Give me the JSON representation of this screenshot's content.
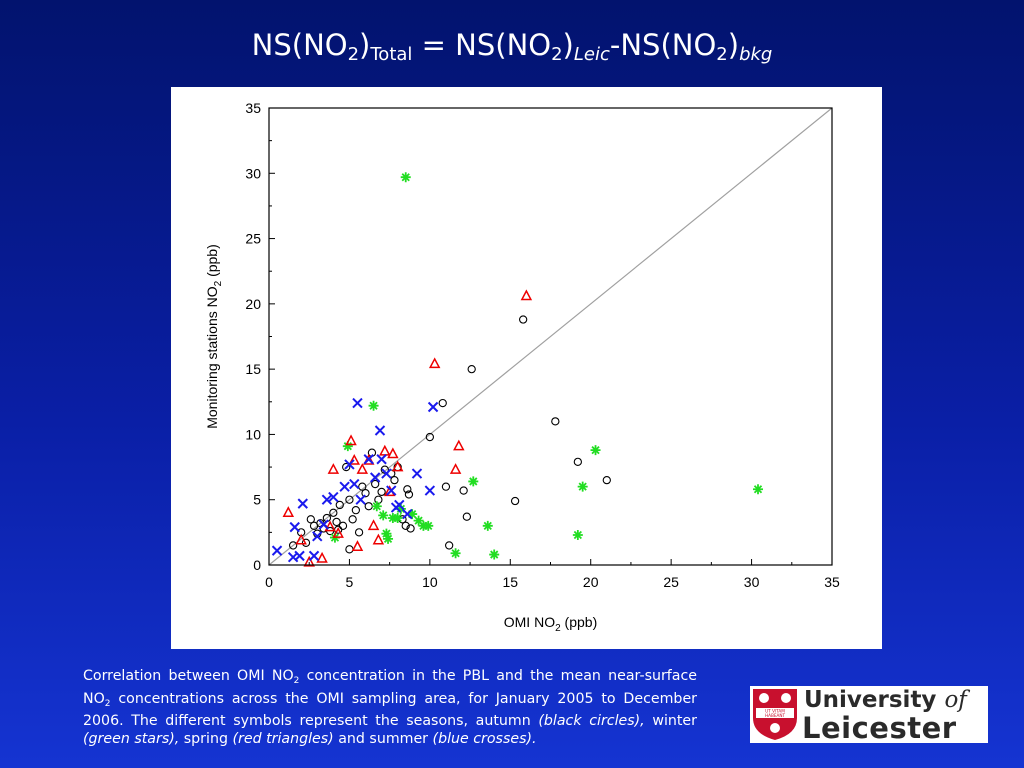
{
  "title": {
    "p1": "NS(NO",
    "s1": "2",
    "p2": ")",
    "s2": "Total",
    "p3": " = NS(NO",
    "s3": "2",
    "p4": ")",
    "s4": "Leic",
    "p5": "-NS(NO",
    "s5": "2",
    "p6": ")",
    "s6": "bkg"
  },
  "caption": {
    "t1": "Correlation between OMI NO",
    "s1": "2",
    "t2": " concentration in the PBL and the mean near-surface NO",
    "s2": "2",
    "t3": " concentrations across the OMI sampling area, for January 2005 to December 2006. The different symbols represent the seasons, autumn ",
    "i1": "(black circles),",
    "t4": " winter ",
    "i2": "(green stars),",
    "t5": " spring ",
    "i3": "(red triangles)",
    "t6": " and summer ",
    "i4": "(blue crosses)."
  },
  "logo": {
    "line1": "University ",
    "of": "of",
    "line2": "Leicester",
    "motto1": "UT VITAM",
    "motto2": "HABEANT"
  },
  "chart_data": {
    "type": "scatter",
    "xlabel": "OMI NO",
    "xlabel_sub": "2",
    "xlabel_unit": " (ppb)",
    "ylabel": "Monitoring stations NO",
    "ylabel_sub": "2",
    "ylabel_unit": " (ppb)",
    "xlim": [
      0,
      35
    ],
    "ylim": [
      0,
      35
    ],
    "xticks": [
      0,
      5,
      10,
      15,
      20,
      25,
      30,
      35
    ],
    "yticks": [
      0,
      5,
      10,
      15,
      20,
      25,
      30,
      35
    ],
    "grid": false,
    "reference_line": {
      "type": "1:1",
      "color": "#a0a0a0"
    },
    "series": [
      {
        "season": "autumn",
        "marker": "circle",
        "color": "#000000",
        "points": [
          [
            1.5,
            1.5
          ],
          [
            2,
            2.5
          ],
          [
            2.3,
            1.7
          ],
          [
            2.6,
            3.5
          ],
          [
            2.8,
            3
          ],
          [
            3,
            2.4
          ],
          [
            3.2,
            3.2
          ],
          [
            3.4,
            2.8
          ],
          [
            3.6,
            3.6
          ],
          [
            3.8,
            2.6
          ],
          [
            4,
            4
          ],
          [
            4.2,
            3.3
          ],
          [
            4.4,
            4.6
          ],
          [
            4.6,
            3
          ],
          [
            4.8,
            7.5
          ],
          [
            5,
            5
          ],
          [
            5.2,
            3.5
          ],
          [
            5.4,
            4.2
          ],
          [
            5.6,
            2.5
          ],
          [
            5.8,
            6
          ],
          [
            6,
            5.5
          ],
          [
            6.2,
            4.5
          ],
          [
            6.4,
            8.6
          ],
          [
            6.6,
            6.2
          ],
          [
            6.8,
            5
          ],
          [
            7,
            5.6
          ],
          [
            7.2,
            7.3
          ],
          [
            7.6,
            7
          ],
          [
            7.8,
            6.5
          ],
          [
            8,
            7.5
          ],
          [
            8.3,
            3.5
          ],
          [
            8.5,
            3
          ],
          [
            8.6,
            5.8
          ],
          [
            8.7,
            5.4
          ],
          [
            8.8,
            2.8
          ],
          [
            10,
            9.8
          ],
          [
            10.8,
            12.4
          ],
          [
            11,
            6
          ],
          [
            11.2,
            1.5
          ],
          [
            12.1,
            5.7
          ],
          [
            12.3,
            3.7
          ],
          [
            12.6,
            15
          ],
          [
            15.3,
            4.9
          ],
          [
            15.8,
            18.8
          ],
          [
            17.8,
            11
          ],
          [
            19.2,
            7.9
          ],
          [
            21,
            6.5
          ],
          [
            5.0,
            1.2
          ],
          [
            4.3,
            2.7
          ]
        ]
      },
      {
        "season": "winter",
        "marker": "star",
        "color": "#22dd22",
        "points": [
          [
            4.1,
            2.1
          ],
          [
            4.9,
            9.1
          ],
          [
            6.5,
            12.2
          ],
          [
            6.7,
            4.5
          ],
          [
            7.1,
            3.8
          ],
          [
            7.3,
            2.4
          ],
          [
            7.4,
            2.0
          ],
          [
            7.7,
            3.6
          ],
          [
            8.0,
            3.6
          ],
          [
            8.2,
            4.3
          ],
          [
            8.5,
            29.7
          ],
          [
            8.9,
            3.9
          ],
          [
            9.3,
            3.4
          ],
          [
            9.6,
            3.0
          ],
          [
            9.9,
            3.0
          ],
          [
            11.6,
            0.9
          ],
          [
            12.7,
            6.4
          ],
          [
            13.6,
            3.0
          ],
          [
            14.0,
            0.8
          ],
          [
            19.2,
            2.3
          ],
          [
            19.5,
            6.0
          ],
          [
            20.3,
            8.8
          ],
          [
            30.4,
            5.8
          ]
        ]
      },
      {
        "season": "spring",
        "marker": "triangle",
        "color": "#ee0000",
        "points": [
          [
            1.2,
            4.0
          ],
          [
            2.0,
            1.9
          ],
          [
            2.5,
            0.2
          ],
          [
            3.3,
            0.5
          ],
          [
            3.8,
            2.9
          ],
          [
            4.0,
            7.3
          ],
          [
            4.3,
            2.4
          ],
          [
            5.1,
            9.5
          ],
          [
            5.3,
            8.0
          ],
          [
            5.5,
            1.4
          ],
          [
            5.8,
            7.3
          ],
          [
            6.2,
            8.0
          ],
          [
            6.5,
            3.0
          ],
          [
            6.8,
            1.9
          ],
          [
            7.2,
            8.7
          ],
          [
            7.5,
            5.6
          ],
          [
            7.7,
            8.5
          ],
          [
            8.0,
            7.5
          ],
          [
            10.3,
            15.4
          ],
          [
            11.6,
            7.3
          ],
          [
            11.8,
            9.1
          ],
          [
            16.0,
            20.6
          ]
        ]
      },
      {
        "season": "summer",
        "marker": "cross",
        "color": "#1a1aee",
        "points": [
          [
            0.5,
            1.1
          ],
          [
            1.5,
            0.6
          ],
          [
            1.6,
            2.9
          ],
          [
            1.9,
            0.7
          ],
          [
            2.1,
            4.7
          ],
          [
            2.8,
            0.7
          ],
          [
            3.0,
            2.2
          ],
          [
            3.4,
            3.1
          ],
          [
            3.6,
            5.0
          ],
          [
            4.0,
            5.2
          ],
          [
            4.7,
            6.0
          ],
          [
            5.0,
            7.7
          ],
          [
            5.3,
            6.2
          ],
          [
            5.5,
            12.4
          ],
          [
            5.7,
            5.0
          ],
          [
            6.2,
            8.1
          ],
          [
            6.6,
            6.7
          ],
          [
            6.9,
            10.3
          ],
          [
            7.0,
            8.1
          ],
          [
            7.3,
            7.0
          ],
          [
            7.6,
            5.7
          ],
          [
            7.9,
            4.4
          ],
          [
            8.1,
            4.6
          ],
          [
            8.6,
            3.9
          ],
          [
            9.2,
            7.0
          ],
          [
            10.0,
            5.7
          ],
          [
            10.2,
            12.1
          ]
        ]
      }
    ]
  }
}
